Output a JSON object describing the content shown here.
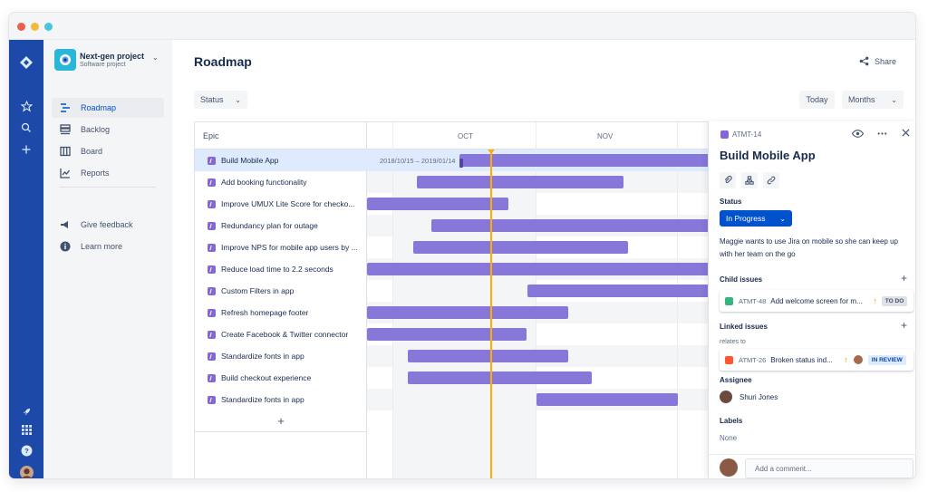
{
  "global_nav": {
    "icons": [
      "jira-logo-icon",
      "star-icon",
      "search-icon",
      "plus-icon",
      "rocket-icon",
      "app-switcher-icon",
      "help-icon",
      "user-avatar"
    ]
  },
  "project": {
    "name": "Next-gen project",
    "type": "Software project"
  },
  "sidebar": {
    "items": [
      {
        "label": "Roadmap",
        "icon": "roadmap-icon",
        "active": true
      },
      {
        "label": "Backlog",
        "icon": "backlog-icon"
      },
      {
        "label": "Board",
        "icon": "board-icon"
      },
      {
        "label": "Reports",
        "icon": "reports-icon"
      }
    ],
    "secondary": [
      {
        "label": "Give feedback",
        "icon": "megaphone-icon"
      },
      {
        "label": "Learn more",
        "icon": "info-icon"
      }
    ]
  },
  "header": {
    "title": "Roadmap",
    "share_label": "Share",
    "status_filter": "Status",
    "today_label": "Today",
    "zoom_label": "Months"
  },
  "roadmap": {
    "epic_column_label": "Epic",
    "months": [
      "OCT",
      "NOV"
    ],
    "selected_date_range": "2018/10/15 – 2019/01/14",
    "add_label": "+",
    "epics": [
      "Build Mobile App",
      "Add booking functionality",
      "Improve UMUX Lite Score for checko...",
      "Redundancy plan for outage",
      "Improve NPS for mobile app users by ...",
      "Reduce load time to 2.2 seconds",
      "Custom Filters in app",
      "Refresh homepage footer",
      "Create Facebook & Twitter connector",
      "Standardize fonts in app",
      "Build checkout experience",
      "Standardize fonts in app"
    ],
    "colors": {
      "bar": "#8777d9",
      "today": "#ffab00",
      "selected_row": "#deebff"
    }
  },
  "detail": {
    "issue_key": "ATMT-14",
    "title": "Build Mobile App",
    "status_label": "Status",
    "status_value": "In Progress",
    "description": "Maggie wants to use Jira on mobile so she can keep up with her team on the go",
    "child_issues_label": "Child issues",
    "child_issue": {
      "key": "ATMT-48",
      "summary": "Add welcome screen for m...",
      "status": "TO DO"
    },
    "linked_issues_label": "Linked issues",
    "relates_to_label": "relates to",
    "linked_issue": {
      "key": "ATMT-26",
      "summary": "Broken status ind...",
      "status": "IN REVIEW"
    },
    "assignee_label": "Assignee",
    "assignee_name": "Shuri Jones",
    "labels_label": "Labels",
    "labels_value": "None",
    "comment_placeholder": "Add a comment..."
  }
}
